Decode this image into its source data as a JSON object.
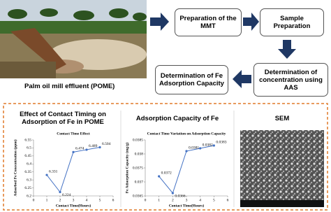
{
  "flow": {
    "photo_caption": "Palm oil mill effluent (POME)",
    "steps": [
      "Preparation of the MMT",
      "Sample Preparation",
      "Determination of concentration using AAS",
      "Determination of Fe Adsorption Capacity"
    ]
  },
  "panels": [
    {
      "heading": "Effect of Contact Timing on Adsorption of Fe in POME",
      "chart_data": {
        "type": "line",
        "title": "Contact Time Effect",
        "x_label": "Contact Time(Hours)",
        "y_label": "Adsorbed Fe Concentration (ppm)",
        "x": [
          1,
          2,
          3,
          4,
          5
        ],
        "values": [
          6.331,
          6.224,
          6.474,
          6.489,
          6.504
        ],
        "color": "#4472c4",
        "xlim": [
          0,
          6
        ],
        "xticks": [
          0,
          1,
          2,
          3,
          4,
          5,
          6
        ],
        "ylim": [
          6.2,
          6.55
        ],
        "yticks": [
          6.2,
          6.25,
          6.3,
          6.35,
          6.4,
          6.45,
          6.5,
          6.55
        ]
      }
    },
    {
      "heading": "Adsorption Capacity of Fe",
      "chart_data": {
        "type": "line",
        "title": "Contact Time Variation on Adsorption Capacity",
        "x_label": "Contact Time(Hours)",
        "y_label": "Fe Adsorption Capacity (mg/g)",
        "x": [
          1,
          2,
          3,
          4,
          5
        ],
        "values": [
          0.0372,
          0.0366,
          0.0381,
          0.0382,
          0.0383
        ],
        "color": "#4472c4",
        "xlim": [
          0,
          6
        ],
        "xticks": [
          0,
          1,
          2,
          3,
          4,
          5,
          6
        ],
        "ylim": [
          0.0365,
          0.0385
        ],
        "yticks": [
          0.0365,
          0.037,
          0.0375,
          0.038,
          0.0385
        ]
      }
    },
    {
      "heading": "SEM"
    }
  ]
}
